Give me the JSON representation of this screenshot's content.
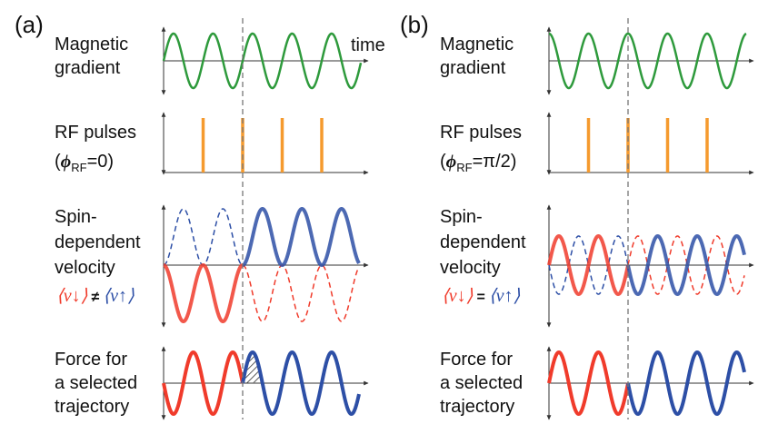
{
  "panels": [
    {
      "label": "(a)",
      "gradient": [
        "Magnetic",
        "gradient"
      ],
      "time": "time",
      "rf": "RF pulses",
      "rf_phase": [
        "(",
        "ϕ",
        "RF",
        "=0)"
      ],
      "velocity": [
        "Spin-",
        "dependent",
        "velocity"
      ],
      "relation": [
        "⟨v↓⟩",
        "≠",
        "⟨v↑⟩"
      ],
      "force": [
        "Force for",
        "a selected",
        "trajectory"
      ]
    },
    {
      "label": "(b)",
      "gradient": [
        "Magnetic",
        "gradient"
      ],
      "rf": "RF pulses",
      "rf_phase": [
        "(",
        "ϕ",
        "RF",
        "=π/2)"
      ],
      "velocity": [
        "Spin-",
        "dependent",
        "velocity"
      ],
      "relation": [
        "⟨v↓⟩",
        "=",
        "⟨v↑⟩"
      ],
      "force": [
        "Force for",
        "a selected",
        "trajectory"
      ]
    }
  ]
}
